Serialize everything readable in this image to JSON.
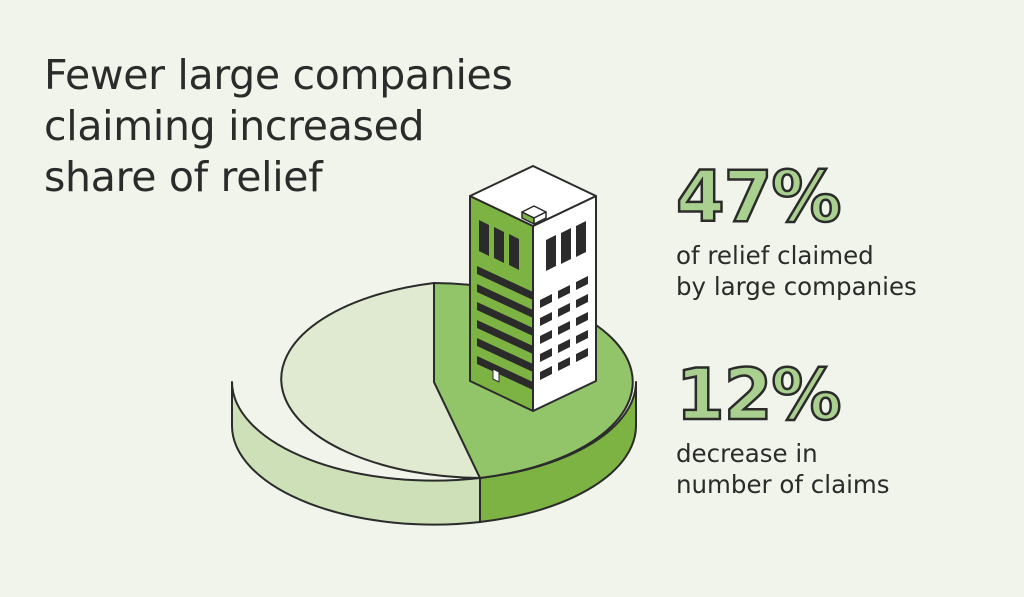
{
  "title_lines": [
    "Fewer large companies",
    "claiming increased",
    "share of relief"
  ],
  "stats": [
    {
      "value": "47%",
      "label_lines": [
        "of relief claimed",
        "by large companies"
      ]
    },
    {
      "value": "12%",
      "label_lines": [
        "decrease in",
        "number of claims"
      ]
    }
  ],
  "colors": {
    "background": "#f0f4ea",
    "pie_light_top": "#dfead0",
    "pie_light_side": "#cde0b8",
    "pie_dark_top": "#92c46a",
    "pie_dark_side": "#7cb342",
    "building_green": "#7cb342",
    "stroke": "#2b2b2b"
  },
  "chart_data": {
    "type": "pie",
    "slices": [
      {
        "value": 47
      },
      {
        "value": 53
      }
    ]
  }
}
